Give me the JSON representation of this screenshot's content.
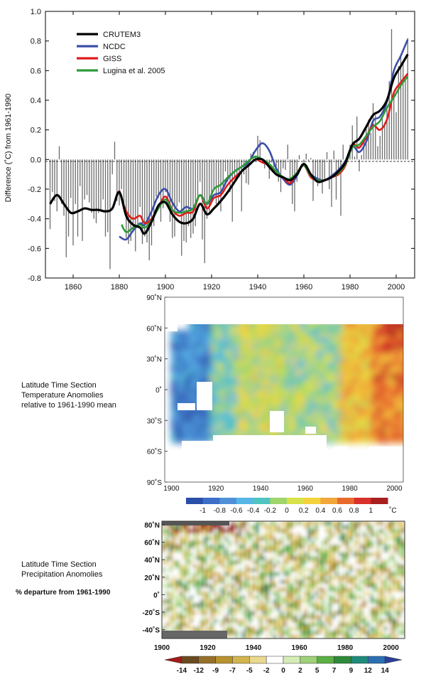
{
  "chart_data": [
    {
      "type": "line",
      "ylabel": "Difference (˚C) from 1961-1990",
      "ylim": [
        -0.8,
        1.0
      ],
      "xlim": [
        1848,
        2008
      ],
      "x_ticks": [
        "1860",
        "1880",
        "1900",
        "1920",
        "1940",
        "1960",
        "1980",
        "2000"
      ],
      "y_ticks": [
        "1.0",
        "0.8",
        "0.6",
        "0.4",
        "0.2",
        "0.0",
        "-0.2",
        "-0.4",
        "-0.6",
        "-0.8"
      ],
      "legend_position": "top-left",
      "annual_bars": {
        "years": [
          1850,
          1851,
          1852,
          1853,
          1854,
          1855,
          1856,
          1857,
          1858,
          1859,
          1860,
          1861,
          1862,
          1863,
          1864,
          1865,
          1866,
          1867,
          1868,
          1869,
          1870,
          1871,
          1872,
          1873,
          1874,
          1875,
          1876,
          1877,
          1878,
          1879,
          1880,
          1881,
          1882,
          1883,
          1884,
          1885,
          1886,
          1887,
          1888,
          1889,
          1890,
          1891,
          1892,
          1893,
          1894,
          1895,
          1896,
          1897,
          1898,
          1899,
          1900,
          1901,
          1902,
          1903,
          1904,
          1905,
          1906,
          1907,
          1908,
          1909,
          1910,
          1911,
          1912,
          1913,
          1914,
          1915,
          1916,
          1917,
          1918,
          1919,
          1920,
          1921,
          1922,
          1923,
          1924,
          1925,
          1926,
          1927,
          1928,
          1929,
          1930,
          1931,
          1932,
          1933,
          1934,
          1935,
          1936,
          1937,
          1938,
          1939,
          1940,
          1941,
          1942,
          1943,
          1944,
          1945,
          1946,
          1947,
          1948,
          1949,
          1950,
          1951,
          1952,
          1953,
          1954,
          1955,
          1956,
          1957,
          1958,
          1959,
          1960,
          1961,
          1962,
          1963,
          1964,
          1965,
          1966,
          1967,
          1968,
          1969,
          1970,
          1971,
          1972,
          1973,
          1974,
          1975,
          1976,
          1977,
          1978,
          1979,
          1980,
          1981,
          1982,
          1983,
          1984,
          1985,
          1986,
          1987,
          1988,
          1989,
          1990,
          1991,
          1992,
          1993,
          1994,
          1995,
          1996,
          1997,
          1998,
          1999,
          2000,
          2001,
          2002,
          2003,
          2004,
          2005
        ],
        "values": [
          -0.47,
          -0.22,
          -0.28,
          -0.35,
          0.09,
          -0.3,
          -0.38,
          -0.66,
          -0.52,
          -0.26,
          -0.58,
          -0.3,
          -0.52,
          -0.18,
          -0.55,
          -0.27,
          -0.24,
          -0.29,
          -0.36,
          -0.4,
          -0.43,
          -0.36,
          -0.34,
          -0.27,
          -0.52,
          -0.49,
          -0.74,
          -0.1,
          0.12,
          -0.28,
          -0.31,
          -0.2,
          -0.3,
          -0.53,
          -0.57,
          -0.55,
          -0.49,
          -0.62,
          -0.46,
          -0.32,
          -0.57,
          -0.52,
          -0.56,
          -0.68,
          -0.58,
          -0.45,
          -0.25,
          -0.26,
          -0.42,
          -0.33,
          -0.22,
          -0.26,
          -0.42,
          -0.53,
          -0.52,
          -0.32,
          -0.29,
          -0.65,
          -0.55,
          -0.56,
          -0.45,
          -0.53,
          -0.5,
          -0.45,
          -0.28,
          -0.15,
          -0.54,
          -0.7,
          -0.4,
          -0.35,
          -0.29,
          -0.2,
          -0.3,
          -0.31,
          -0.35,
          -0.2,
          -0.08,
          -0.15,
          -0.22,
          -0.42,
          -0.13,
          -0.11,
          -0.12,
          -0.35,
          -0.1,
          -0.16,
          -0.17,
          0.04,
          0.05,
          0.02,
          0.16,
          0.13,
          0.0,
          -0.06,
          -0.01,
          -0.13,
          -0.02,
          -0.05,
          -0.07,
          -0.15,
          -0.22,
          -0.06,
          -0.07,
          0.1,
          -0.16,
          -0.3,
          -0.35,
          -0.15,
          0.03,
          0.0,
          -0.02,
          0.04,
          -0.01,
          0.01,
          -0.28,
          -0.15,
          -0.18,
          -0.14,
          -0.23,
          -0.15,
          0.05,
          -0.2,
          -0.32,
          0.06,
          -0.27,
          -0.11,
          -0.38,
          0.1,
          -0.02,
          0.04,
          0.1,
          0.23,
          0.02,
          0.29,
          -0.08,
          0.03,
          0.12,
          0.22,
          0.27,
          0.18,
          0.38,
          0.3,
          0.09,
          0.16,
          0.28,
          0.25,
          0.36,
          0.53,
          0.88,
          0.44,
          0.32,
          0.63,
          0.7,
          0.66,
          0.54,
          0.82
        ]
      },
      "series": [
        {
          "name": "CRUTEM3",
          "color": "#000000",
          "x": [
            1850,
            1853,
            1856,
            1859,
            1862,
            1865,
            1868,
            1871,
            1874,
            1877,
            1880,
            1883,
            1886,
            1889,
            1891,
            1894,
            1897,
            1900,
            1903,
            1906,
            1909,
            1912,
            1915,
            1918,
            1921,
            1924,
            1927,
            1930,
            1933,
            1936,
            1939,
            1942,
            1945,
            1948,
            1951,
            1954,
            1957,
            1960,
            1963,
            1966,
            1969,
            1972,
            1975,
            1978,
            1981,
            1984,
            1987,
            1990,
            1993,
            1996,
            1999,
            2002,
            2005
          ],
          "y": [
            -0.3,
            -0.24,
            -0.3,
            -0.36,
            -0.35,
            -0.33,
            -0.34,
            -0.34,
            -0.35,
            -0.33,
            -0.22,
            -0.38,
            -0.44,
            -0.46,
            -0.5,
            -0.42,
            -0.31,
            -0.29,
            -0.37,
            -0.42,
            -0.43,
            -0.4,
            -0.3,
            -0.37,
            -0.33,
            -0.28,
            -0.22,
            -0.15,
            -0.08,
            -0.04,
            0.0,
            0.0,
            -0.05,
            -0.1,
            -0.12,
            -0.14,
            -0.1,
            -0.03,
            -0.1,
            -0.15,
            -0.14,
            -0.12,
            -0.08,
            -0.02,
            0.1,
            0.14,
            0.22,
            0.3,
            0.33,
            0.4,
            0.55,
            0.63,
            0.71
          ]
        },
        {
          "name": "NCDC",
          "color": "#3b4fa8",
          "x": [
            1880,
            1883,
            1886,
            1889,
            1891,
            1894,
            1897,
            1900,
            1903,
            1906,
            1909,
            1912,
            1915,
            1918,
            1921,
            1924,
            1927,
            1930,
            1933,
            1936,
            1939,
            1942,
            1945,
            1948,
            1951,
            1954,
            1957,
            1960,
            1963,
            1966,
            1969,
            1972,
            1975,
            1978,
            1981,
            1984,
            1987,
            1990,
            1993,
            1996,
            1999,
            2002,
            2005
          ],
          "y": [
            -0.52,
            -0.54,
            -0.48,
            -0.43,
            -0.44,
            -0.35,
            -0.24,
            -0.2,
            -0.29,
            -0.35,
            -0.32,
            -0.33,
            -0.24,
            -0.3,
            -0.24,
            -0.22,
            -0.13,
            -0.08,
            -0.05,
            -0.02,
            0.06,
            0.11,
            0.06,
            -0.06,
            -0.13,
            -0.17,
            -0.11,
            -0.03,
            -0.1,
            -0.13,
            -0.14,
            -0.11,
            -0.07,
            -0.01,
            0.09,
            0.05,
            0.12,
            0.26,
            0.29,
            0.39,
            0.6,
            0.7,
            0.81
          ]
        },
        {
          "name": "GISS",
          "color": "#e01b1b",
          "x": [
            1880,
            1883,
            1886,
            1889,
            1891,
            1894,
            1897,
            1900,
            1903,
            1906,
            1909,
            1912,
            1915,
            1918,
            1921,
            1924,
            1927,
            1930,
            1933,
            1936,
            1939,
            1942,
            1945,
            1948,
            1951,
            1954,
            1957,
            1960,
            1963,
            1966,
            1969,
            1972,
            1975,
            1978,
            1981,
            1984,
            1987,
            1990,
            1993,
            1996,
            1999,
            2002,
            2005
          ],
          "y": [
            -0.21,
            -0.35,
            -0.4,
            -0.38,
            -0.43,
            -0.4,
            -0.32,
            -0.25,
            -0.34,
            -0.38,
            -0.36,
            -0.35,
            -0.24,
            -0.33,
            -0.26,
            -0.24,
            -0.17,
            -0.12,
            -0.08,
            -0.04,
            0.0,
            -0.02,
            -0.04,
            -0.1,
            -0.12,
            -0.16,
            -0.09,
            -0.04,
            -0.12,
            -0.14,
            -0.14,
            -0.12,
            -0.1,
            -0.04,
            0.1,
            0.08,
            0.15,
            0.23,
            0.2,
            0.27,
            0.45,
            0.52,
            0.58
          ]
        },
        {
          "name": "Lugina et al. 2005",
          "color": "#2e9b3a",
          "x": [
            1881,
            1883,
            1886,
            1889,
            1891,
            1894,
            1897,
            1900,
            1903,
            1906,
            1909,
            1912,
            1915,
            1918,
            1921,
            1924,
            1927,
            1930,
            1933,
            1936,
            1939,
            1942,
            1945,
            1948,
            1951,
            1954,
            1957,
            1960,
            1963,
            1966,
            1969,
            1972,
            1975,
            1978,
            1981,
            1984,
            1987,
            1990,
            1993,
            1996,
            1999,
            2002,
            2005
          ],
          "y": [
            -0.44,
            -0.49,
            -0.46,
            -0.44,
            -0.46,
            -0.41,
            -0.33,
            -0.27,
            -0.34,
            -0.36,
            -0.35,
            -0.33,
            -0.24,
            -0.3,
            -0.2,
            -0.17,
            -0.12,
            -0.08,
            -0.05,
            -0.01,
            0.02,
            0.0,
            -0.03,
            -0.08,
            -0.12,
            -0.13,
            -0.09,
            -0.04,
            -0.11,
            -0.14,
            -0.14,
            -0.12,
            -0.09,
            -0.03,
            0.08,
            0.1,
            0.16,
            0.22,
            0.26,
            0.35,
            0.42,
            0.5,
            0.56
          ]
        }
      ]
    },
    {
      "type": "heatmap",
      "label_lines": [
        "Latitude Time Section",
        "Temperature Anomolies",
        "relative to 1961-1990 mean"
      ],
      "x_ticks": [
        "1900",
        "1920",
        "1940",
        "1960",
        "1980",
        "2000"
      ],
      "y_ticks": [
        "90˚N",
        "60˚N",
        "30˚N",
        "0˚",
        "30˚S",
        "60˚S",
        "90˚S"
      ],
      "colorbar_labels": [
        "-1",
        "-0.8",
        "-0.6",
        "-0.4",
        "-0.2",
        "0",
        "0.2",
        "0.4",
        "0.6",
        "0.8",
        "1"
      ],
      "colorbar_unit": "˚C",
      "colorbar_colors": [
        "#2a4fa8",
        "#3b6fc8",
        "#4f91d8",
        "#56b7e6",
        "#4fc4c0",
        "#9fd56a",
        "#d8e04a",
        "#f4d23c",
        "#f3a63a",
        "#ea6a2c",
        "#d8302a",
        "#a8201e"
      ]
    },
    {
      "type": "heatmap",
      "label_lines": [
        "Latitude Time Section",
        "Precipitation Anomolies"
      ],
      "label_bold": "% departure from 1961-1990",
      "x_ticks": [
        "1900",
        "1920",
        "1940",
        "1960",
        "1980",
        "2000"
      ],
      "y_ticks": [
        "80˚N",
        "60˚N",
        "40˚N",
        "20˚N",
        "0˚",
        "-20˚S",
        "-40˚S"
      ],
      "colorbar_labels": [
        "-14",
        "-12",
        "-9",
        "-7",
        "-5",
        "-2",
        "0",
        "2",
        "5",
        "7",
        "9",
        "12",
        "14"
      ],
      "colorbar_colors": [
        "#a11b1b",
        "#6a4a20",
        "#94702a",
        "#b8922e",
        "#d2b44e",
        "#ead88e",
        "#ffffff",
        "#d6ecb8",
        "#9fd07a",
        "#5bb043",
        "#2e8a3a",
        "#1f8a7a",
        "#2a6fb2",
        "#2a3f9a"
      ]
    }
  ]
}
